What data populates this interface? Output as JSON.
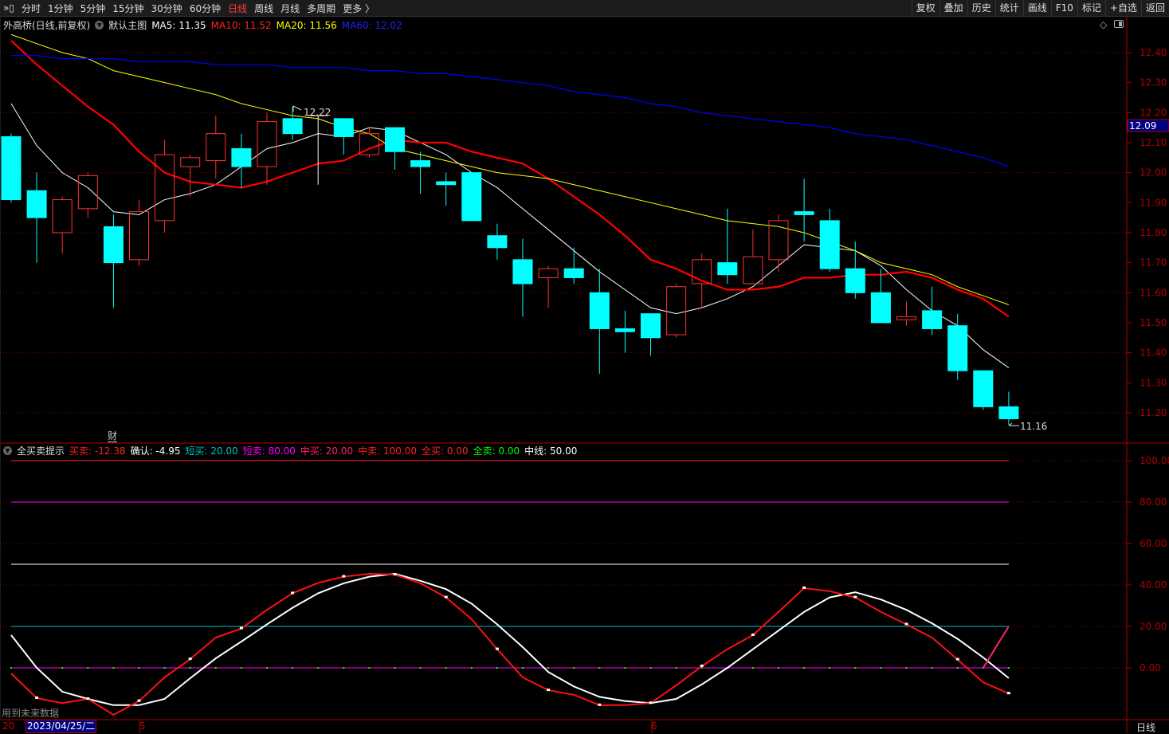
{
  "toolbar": {
    "periods": [
      "分时",
      "1分钟",
      "5分钟",
      "15分钟",
      "30分钟",
      "60分钟",
      "日线",
      "周线",
      "月线",
      "多周期",
      "更多 〉"
    ],
    "active_period": "日线",
    "right_buttons": [
      "复权",
      "叠加",
      "历史",
      "统计",
      "画线",
      "F10",
      "标记",
      "+自选",
      "返回"
    ]
  },
  "main_legend": {
    "title": "外高桥(日线,前复权)",
    "template": "默认主图",
    "ma5": "MA5: 11.35",
    "ma10": "MA10: 11.52",
    "ma20": "MA20: 11.56",
    "ma60": "MA60: 12.02"
  },
  "colors": {
    "up": "#ff3232",
    "down": "#00ffff",
    "ma5": "#ffffff",
    "ma10": "#ff0000",
    "ma20": "#ffff00",
    "ma60": "#0000ff",
    "axis": "#b00000"
  },
  "sub_legend": {
    "title": "全买卖提示",
    "items": [
      {
        "text": "买卖: -12.38",
        "color": "#ff2020"
      },
      {
        "text": "确认: -4.95",
        "color": "#ffffff"
      },
      {
        "text": "短买: 20.00",
        "color": "#00c0c0"
      },
      {
        "text": "短卖: 80.00",
        "color": "#ff00ff"
      },
      {
        "text": "中买: 20.00",
        "color": "#ff2060"
      },
      {
        "text": "中卖: 100.00",
        "color": "#ff2020"
      },
      {
        "text": "全买: 0.00",
        "color": "#ff2020"
      },
      {
        "text": "全卖: 0.00",
        "color": "#00ff00"
      },
      {
        "text": "中线: 50.00",
        "color": "#ffffff"
      }
    ]
  },
  "annotations": {
    "high_label": "12.22",
    "low_label": "11.16",
    "current_price": "12.09",
    "cai_marker": "财",
    "future_data_note": "用到未来数据"
  },
  "bottom_axis": {
    "left_fragment": "20",
    "selected_date": "2023/04/25/二",
    "month5": "5",
    "month6": "6",
    "period": "日线"
  },
  "chart_data": [
    {
      "type": "candlestick",
      "ylim": [
        11.14,
        12.46
      ],
      "yticks": [
        "12.40",
        "12.30",
        "12.20",
        "12.10",
        "12.00",
        "11.90",
        "11.80",
        "11.70",
        "11.60",
        "11.50",
        "11.40",
        "11.30",
        "11.20"
      ],
      "grid": "dotted",
      "ohlc": [
        [
          12.12,
          12.13,
          11.9,
          11.91
        ],
        [
          11.94,
          12.0,
          11.7,
          11.85
        ],
        [
          11.8,
          11.92,
          11.73,
          11.91
        ],
        [
          11.88,
          12.0,
          11.85,
          11.99
        ],
        [
          11.82,
          11.86,
          11.55,
          11.7
        ],
        [
          11.71,
          11.91,
          11.69,
          11.87
        ],
        [
          11.84,
          12.11,
          11.8,
          12.06
        ],
        [
          12.02,
          12.06,
          11.92,
          12.05
        ],
        [
          12.04,
          12.19,
          11.98,
          12.13
        ],
        [
          12.08,
          12.13,
          11.95,
          12.02
        ],
        [
          12.02,
          12.2,
          11.96,
          12.17
        ],
        [
          12.18,
          12.22,
          12.11,
          12.13
        ],
        [
          12.19,
          12.19,
          11.96,
          12.19
        ],
        [
          12.18,
          12.18,
          12.06,
          12.12
        ],
        [
          12.06,
          12.15,
          12.05,
          12.13
        ],
        [
          12.15,
          12.15,
          12.01,
          12.07
        ],
        [
          12.04,
          12.07,
          11.93,
          12.02
        ],
        [
          11.97,
          12.0,
          11.89,
          11.96
        ],
        [
          12.0,
          12.0,
          11.84,
          11.84
        ],
        [
          11.79,
          11.83,
          11.71,
          11.75
        ],
        [
          11.71,
          11.78,
          11.52,
          11.63
        ],
        [
          11.65,
          11.69,
          11.55,
          11.68
        ],
        [
          11.68,
          11.75,
          11.63,
          11.65
        ],
        [
          11.6,
          11.68,
          11.33,
          11.48
        ],
        [
          11.48,
          11.54,
          11.4,
          11.47
        ],
        [
          11.53,
          11.53,
          11.39,
          11.45
        ],
        [
          11.46,
          11.63,
          11.45,
          11.62
        ],
        [
          11.63,
          11.73,
          11.55,
          11.71
        ],
        [
          11.7,
          11.88,
          11.63,
          11.66
        ],
        [
          11.63,
          11.81,
          11.63,
          11.72
        ],
        [
          11.71,
          11.86,
          11.67,
          11.84
        ],
        [
          11.87,
          11.98,
          11.77,
          11.86
        ],
        [
          11.84,
          11.88,
          11.67,
          11.68
        ],
        [
          11.68,
          11.77,
          11.58,
          11.6
        ],
        [
          11.6,
          11.68,
          11.5,
          11.5
        ],
        [
          11.51,
          11.57,
          11.49,
          11.52
        ],
        [
          11.54,
          11.62,
          11.46,
          11.48
        ],
        [
          11.49,
          11.53,
          11.31,
          11.34
        ],
        [
          11.34,
          11.34,
          11.21,
          11.22
        ],
        [
          11.22,
          11.27,
          11.16,
          11.18
        ]
      ],
      "series": [
        {
          "name": "MA5",
          "values": [
            12.23,
            12.09,
            12.0,
            11.95,
            11.87,
            11.86,
            11.91,
            11.93,
            11.96,
            12.02,
            12.08,
            12.1,
            12.13,
            12.12,
            12.15,
            12.14,
            12.1,
            12.06,
            12.0,
            11.95,
            11.88,
            11.81,
            11.74,
            11.67,
            11.61,
            11.55,
            11.53,
            11.55,
            11.58,
            11.62,
            11.69,
            11.76,
            11.75,
            11.74,
            11.69,
            11.61,
            11.54,
            11.49,
            11.41,
            11.35
          ]
        },
        {
          "name": "MA10",
          "values": [
            12.44,
            12.36,
            12.29,
            12.22,
            12.16,
            12.07,
            12.0,
            11.97,
            11.96,
            11.95,
            11.97,
            12.0,
            12.03,
            12.04,
            12.08,
            12.11,
            12.1,
            12.1,
            12.07,
            12.05,
            12.03,
            11.98,
            11.92,
            11.86,
            11.79,
            11.71,
            11.68,
            11.64,
            11.61,
            11.61,
            11.62,
            11.65,
            11.65,
            11.66,
            11.66,
            11.67,
            11.65,
            11.61,
            11.58,
            11.52
          ]
        },
        {
          "name": "MA20",
          "values": [
            12.46,
            12.43,
            12.4,
            12.38,
            12.34,
            12.32,
            12.3,
            12.28,
            12.26,
            12.23,
            12.21,
            12.19,
            12.18,
            12.15,
            12.13,
            12.08,
            12.06,
            12.04,
            12.02,
            12.0,
            11.99,
            11.98,
            11.96,
            11.94,
            11.92,
            11.9,
            11.88,
            11.86,
            11.84,
            11.83,
            11.82,
            11.8,
            11.77,
            11.74,
            11.7,
            11.68,
            11.66,
            11.62,
            11.59,
            11.56
          ]
        },
        {
          "name": "MA60",
          "values": [
            12.39,
            12.39,
            12.38,
            12.38,
            12.38,
            12.37,
            12.37,
            12.37,
            12.36,
            12.36,
            12.36,
            12.35,
            12.35,
            12.35,
            12.34,
            12.34,
            12.33,
            12.33,
            12.32,
            12.31,
            12.3,
            12.29,
            12.27,
            12.26,
            12.25,
            12.23,
            12.22,
            12.2,
            12.19,
            12.18,
            12.17,
            12.16,
            12.15,
            12.13,
            12.12,
            12.11,
            12.09,
            12.07,
            12.05,
            12.02
          ]
        }
      ]
    },
    {
      "type": "line",
      "ylim": [
        -30,
        105
      ],
      "yticks": [
        "100.00",
        "80.00",
        "60.00",
        "40.00",
        "20.00",
        "0.00"
      ],
      "levels": [
        {
          "name": "中卖",
          "value": 100
        },
        {
          "name": "短卖",
          "value": 80
        },
        {
          "name": "中线",
          "value": 50
        },
        {
          "name": "短买",
          "value": 20
        },
        {
          "name": "全买",
          "value": 0
        }
      ],
      "series": [
        {
          "name": "买卖",
          "values": [
            -2.7,
            -14.6,
            -17,
            -15,
            -22.7,
            -16,
            -4.6,
            4.2,
            14.6,
            19,
            28,
            36,
            41,
            44,
            45.4,
            45,
            40.8,
            34,
            23.5,
            9,
            -4.6,
            -10.8,
            -13,
            -18,
            -18,
            -17,
            -8.5,
            0.8,
            9,
            15.8,
            27,
            38.5,
            37,
            34,
            27,
            21,
            14.6,
            4,
            -7,
            -12.38
          ]
        },
        {
          "name": "确认",
          "values": [
            15.8,
            0,
            -11.5,
            -15,
            -18,
            -18,
            -15,
            -5,
            4.6,
            12.7,
            21,
            29,
            36,
            40.8,
            44,
            45.4,
            42,
            38,
            31,
            21,
            10,
            -2,
            -9,
            -14,
            -16,
            -17,
            -15,
            -8,
            0,
            9,
            18,
            27,
            34,
            36.5,
            33,
            28,
            21.5,
            14,
            5,
            -4.95
          ]
        }
      ],
      "signal_segment": [
        0,
        20
      ]
    }
  ]
}
